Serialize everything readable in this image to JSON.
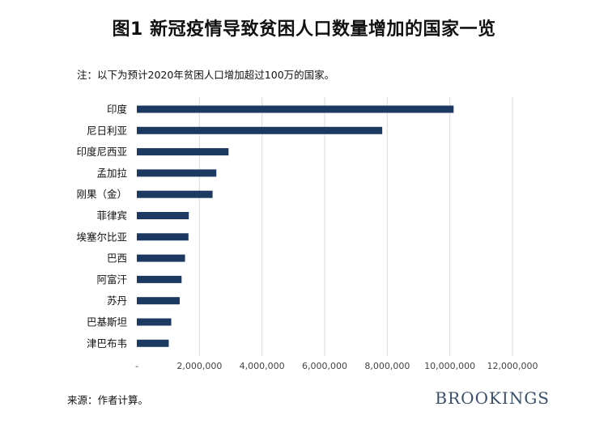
{
  "header": {
    "title": "图1  新冠疫情导致贫困人口数量增加的国家一览",
    "note": "注：以下为预计2020年贫困人口增加超过100万的国家。"
  },
  "footer": {
    "source": "来源：作者计算。",
    "brand": "BROOKINGS"
  },
  "colors": {
    "bar": "#1c3961",
    "grid": "#d9d9d9",
    "axis_text": "#444444"
  },
  "chart_data": {
    "type": "bar",
    "orientation": "horizontal",
    "title": "图1  新冠疫情导致贫困人口数量增加的国家一览",
    "xlabel": "",
    "ylabel": "",
    "xlim": [
      0,
      12000000
    ],
    "x_ticks": [
      0,
      2000000,
      4000000,
      6000000,
      8000000,
      10000000,
      12000000
    ],
    "x_tick_labels": [
      "-",
      "2,000,000",
      "4,000,000",
      "6,000,000",
      "8,000,000",
      "10,000,000",
      "12,000,000"
    ],
    "grid": "vertical",
    "categories": [
      "印度",
      "尼日利亚",
      "印度尼西亚",
      "孟加拉",
      "刚果（金）",
      "菲律宾",
      "埃塞尔比亚",
      "巴西",
      "阿富汗",
      "苏丹",
      "巴基斯坦",
      "津巴布韦"
    ],
    "values": [
      10120000,
      7840000,
      2930000,
      2540000,
      2420000,
      1660000,
      1650000,
      1540000,
      1430000,
      1370000,
      1100000,
      1020000
    ]
  }
}
